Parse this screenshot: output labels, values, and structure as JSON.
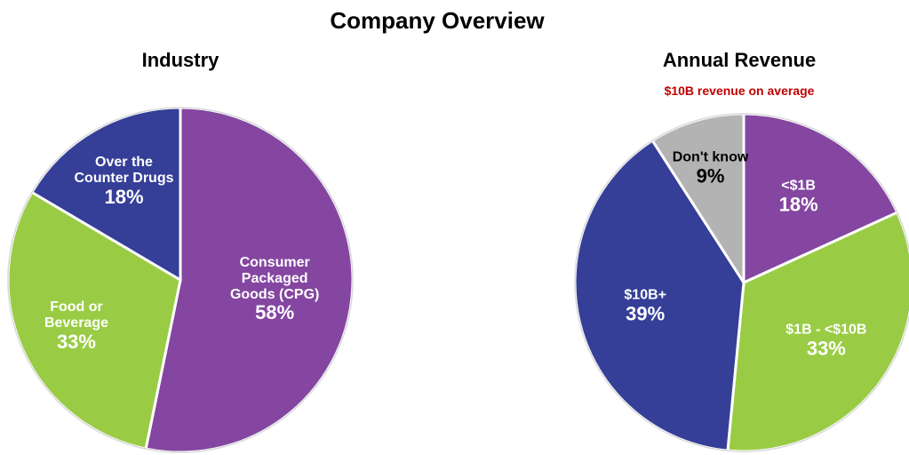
{
  "title": "Company Overview",
  "chart_data": [
    {
      "type": "pie",
      "title": "Industry",
      "categories": [
        "Consumer Packaged Goods (CPG)",
        "Food or Beverage",
        "Over the Counter Drugs"
      ],
      "values": [
        58,
        33,
        18
      ],
      "value_labels": [
        "58%",
        "33%",
        "18%"
      ],
      "colors": [
        "#8446a0",
        "#99cc44",
        "#353f98"
      ],
      "label_colors": [
        "#ffffff",
        "#ffffff",
        "#ffffff"
      ]
    },
    {
      "type": "pie",
      "title": "Annual Revenue",
      "subtitle": "$10B revenue on average",
      "categories": [
        "<$1B",
        "$1B - <$10B",
        "$10B+",
        "Don't know"
      ],
      "values": [
        18,
        33,
        39,
        9
      ],
      "value_labels": [
        "18%",
        "33%",
        "39%",
        "9%"
      ],
      "colors": [
        "#8446a0",
        "#99cc44",
        "#353f98",
        "#b3b3b3"
      ],
      "label_colors": [
        "#ffffff",
        "#ffffff",
        "#ffffff",
        "#000000"
      ]
    }
  ]
}
